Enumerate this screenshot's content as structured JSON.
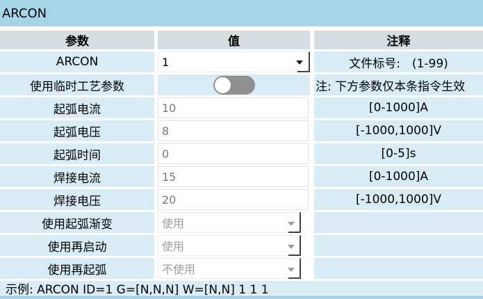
{
  "window": {
    "title": "ARCON"
  },
  "colors": {
    "titlebar_blue": "#a6d5e8",
    "header_gray": "#d5dde2",
    "cell_blue": "#d9ecf6",
    "toggle_gray": "#8f8f8f",
    "disabled_text": "#9c9c9c"
  },
  "table": {
    "headers": {
      "param": "参数",
      "value": "值",
      "comment": "注释"
    },
    "rows": [
      {
        "key": "arcon-id",
        "param": "ARCON",
        "type": "combo",
        "value": "1",
        "comment": "文件标号:　(1-99)"
      },
      {
        "key": "temp-process-param",
        "param": "使用临时工艺参数",
        "type": "toggle",
        "value": "off",
        "comment": "注: 下方参数仅本条指令生效",
        "comment_align": "left"
      },
      {
        "key": "arc-start-current",
        "param": "起弧电流",
        "type": "input",
        "value": "10",
        "comment": "[0-1000]A"
      },
      {
        "key": "arc-start-voltage",
        "param": "起弧电压",
        "type": "input",
        "value": "8",
        "comment": "[-1000,1000]V"
      },
      {
        "key": "arc-start-time",
        "param": "起弧时间",
        "type": "input",
        "value": "0",
        "comment": "[0-5]s"
      },
      {
        "key": "weld-current",
        "param": "焊接电流",
        "type": "input",
        "value": "15",
        "comment": "[0-1000]A"
      },
      {
        "key": "weld-voltage",
        "param": "焊接电压",
        "type": "input",
        "value": "20",
        "comment": "[-1000,1000]V"
      },
      {
        "key": "use-arc-gradient",
        "param": "使用起弧渐变",
        "type": "dropdown",
        "value": "使用",
        "comment": ""
      },
      {
        "key": "use-restart",
        "param": "使用再启动",
        "type": "dropdown",
        "value": "使用",
        "comment": ""
      },
      {
        "key": "use-re-arc",
        "param": "使用再起弧",
        "type": "dropdown",
        "value": "不使用",
        "comment": ""
      }
    ]
  },
  "footer": {
    "example": "示例: ARCON ID=1 G=[N,N,N] W=[N,N] 1 1 1"
  }
}
